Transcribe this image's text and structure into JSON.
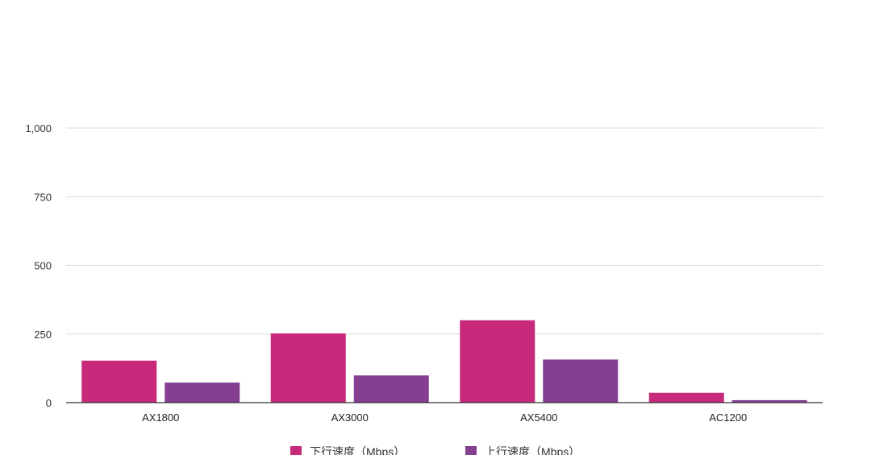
{
  "chart_data": {
    "type": "bar",
    "title": "",
    "xlabel": "",
    "ylabel": "",
    "categories": [
      "AX1800",
      "AX3000",
      "AX5400",
      "AC1200"
    ],
    "series": [
      {
        "name": "下行速度（Mbps）",
        "color": "#c9297a",
        "values": [
          153,
          252,
          300,
          36
        ]
      },
      {
        "name": "上行速度（Mbps）",
        "color": "#843f91",
        "values": [
          73,
          99,
          157,
          9
        ]
      }
    ],
    "ylim": [
      0,
      1000
    ],
    "yticks": [
      0,
      250,
      500,
      750,
      1000
    ],
    "ytick_labels": [
      "0",
      "250",
      "500",
      "750",
      "1,000"
    ],
    "grid": true,
    "legend_position": "bottom"
  }
}
